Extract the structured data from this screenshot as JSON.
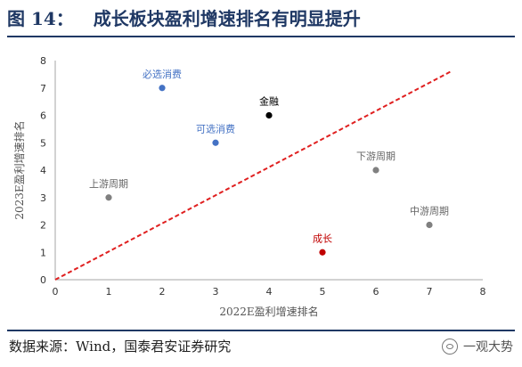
{
  "header": {
    "figure_number": "图 14：",
    "title": "成长板块盈利增速排名有明显提升"
  },
  "footer": {
    "source": "数据来源：Wind，国泰君安证券研究",
    "watermark": "一观大势"
  },
  "chart_data": {
    "type": "scatter",
    "title": "",
    "xlabel": "2022E盈利增速排名",
    "ylabel": "2023E盈利增速排名",
    "xlim": [
      0,
      8
    ],
    "ylim": [
      0,
      8
    ],
    "xticks": [
      0,
      1,
      2,
      3,
      4,
      5,
      6,
      7,
      8
    ],
    "yticks": [
      0,
      1,
      2,
      3,
      4,
      5,
      6,
      7,
      8
    ],
    "grid": false,
    "legend": "none",
    "points": [
      {
        "label": "必选消费",
        "x": 2,
        "y": 7,
        "color": "#4472c4"
      },
      {
        "label": "金融",
        "x": 4,
        "y": 6,
        "color": "#000000"
      },
      {
        "label": "可选消费",
        "x": 3,
        "y": 5,
        "color": "#4472c4"
      },
      {
        "label": "下游周期",
        "x": 6,
        "y": 4,
        "color": "#808080"
      },
      {
        "label": "上游周期",
        "x": 1,
        "y": 3,
        "color": "#808080"
      },
      {
        "label": "中游周期",
        "x": 7,
        "y": 2,
        "color": "#808080"
      },
      {
        "label": "成长",
        "x": 5,
        "y": 1,
        "color": "#c00000"
      }
    ],
    "reference_line": {
      "style": "dashed",
      "color": "#e02020",
      "from": [
        0,
        0
      ],
      "to": [
        7.4,
        7.6
      ]
    }
  }
}
